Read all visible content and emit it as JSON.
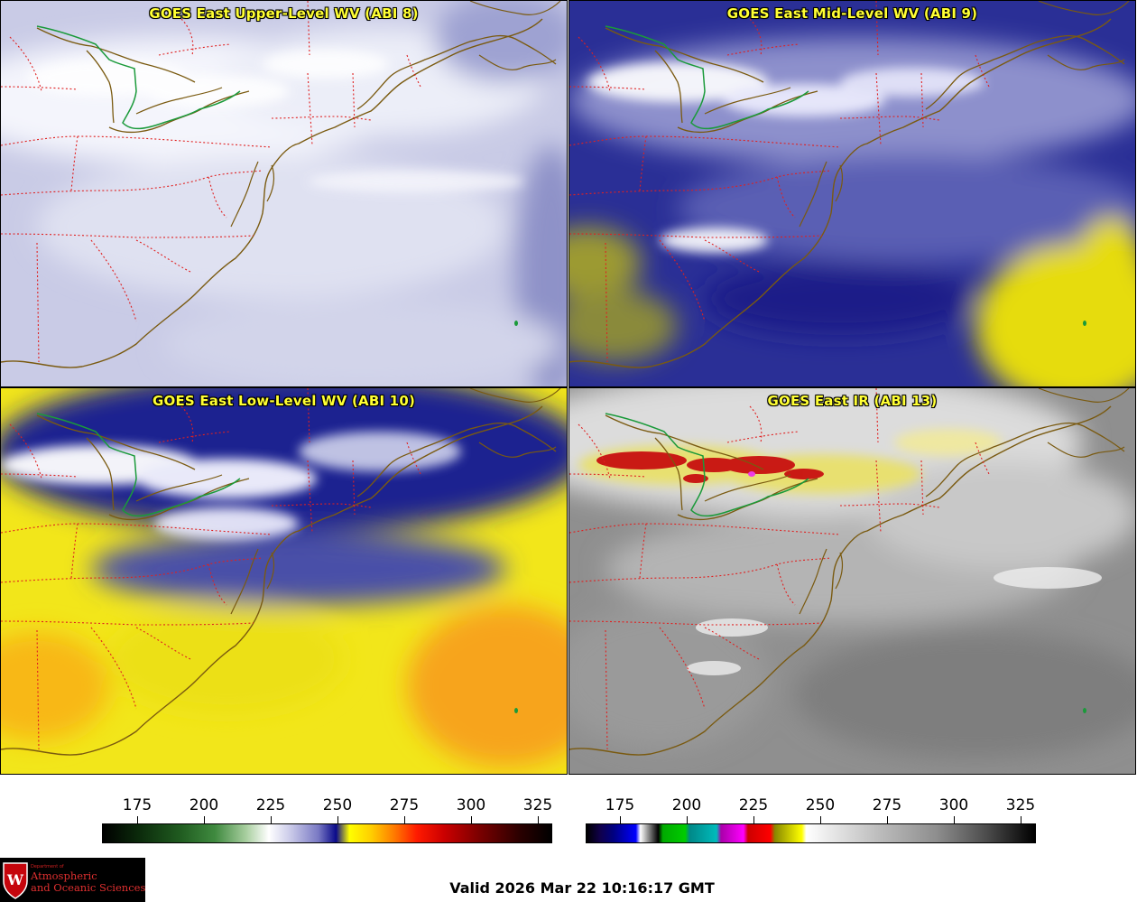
{
  "panels": [
    {
      "id": "p1",
      "title": "GOES East Upper-Level WV (ABI 8)"
    },
    {
      "id": "p2",
      "title": "GOES East Mid-Level WV (ABI 9)"
    },
    {
      "id": "p3",
      "title": "GOES East Low-Level WV (ABI 10)"
    },
    {
      "id": "p4",
      "title": "GOES East IR (ABI 13)"
    }
  ],
  "colorbars": {
    "wv": {
      "ticks": [
        "175",
        "200",
        "225",
        "250",
        "275",
        "300",
        "325"
      ]
    },
    "ir": {
      "ticks": [
        "175",
        "200",
        "225",
        "250",
        "275",
        "300",
        "325"
      ]
    }
  },
  "logo": {
    "department": "Department of",
    "line1": "Atmospheric",
    "line2": "and Oceanic Sciences"
  },
  "valid_time": "Valid 2026 Mar 22 10:16:17 GMT",
  "colors": {
    "title": "#ffff33",
    "coastline": "#7a5a10",
    "state_border": "#e02020",
    "intl_border": "#1a9a3a"
  }
}
